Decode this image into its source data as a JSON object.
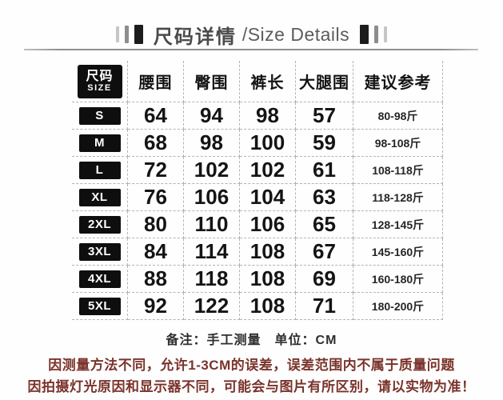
{
  "header": {
    "title_cn": "尺码详情",
    "title_en": "/Size Details"
  },
  "table": {
    "size_badge": {
      "cn": "尺码",
      "en": "SIZE"
    },
    "headers": [
      "腰围",
      "臀围",
      "裤长",
      "大腿围",
      "建议参考"
    ],
    "rows": [
      {
        "size": "S",
        "waist": "64",
        "hip": "94",
        "len": "98",
        "thigh": "57",
        "ref": "80-98斤"
      },
      {
        "size": "M",
        "waist": "68",
        "hip": "98",
        "len": "100",
        "thigh": "59",
        "ref": "98-108斤"
      },
      {
        "size": "L",
        "waist": "72",
        "hip": "102",
        "len": "102",
        "thigh": "61",
        "ref": "108-118斤"
      },
      {
        "size": "XL",
        "waist": "76",
        "hip": "106",
        "len": "104",
        "thigh": "63",
        "ref": "118-128斤"
      },
      {
        "size": "2XL",
        "waist": "80",
        "hip": "110",
        "len": "106",
        "thigh": "65",
        "ref": "128-145斤"
      },
      {
        "size": "3XL",
        "waist": "84",
        "hip": "114",
        "len": "108",
        "thigh": "67",
        "ref": "145-160斤"
      },
      {
        "size": "4XL",
        "waist": "88",
        "hip": "118",
        "len": "108",
        "thigh": "69",
        "ref": "160-180斤"
      },
      {
        "size": "5XL",
        "waist": "92",
        "hip": "122",
        "len": "108",
        "thigh": "71",
        "ref": "180-200斤"
      }
    ]
  },
  "notes": {
    "measure_note": "备注：手工测量　单位：CM",
    "disclaimer1": "因测量方法不同，允许1-3CM的误差，误差范围内不属于质量问题",
    "disclaimer2": "因拍摄灯光原因和显示器不同，可能会与图片有所区别，请以实物为准！"
  },
  "colors": {
    "badge_bg": "#0e0e0e",
    "badge_text": "#ffffff",
    "table_dash_line": "#b3b3b3",
    "title_text": "#4a4a4a",
    "disclaimer_red": "#7a332b",
    "body_text": "#141414"
  },
  "chart_data": {
    "type": "table",
    "title": "尺码详情/Size Details",
    "unit": "CM",
    "note": "备注：手工测量 单位：CM",
    "columns": [
      "尺码/SIZE",
      "腰围",
      "臀围",
      "裤长",
      "大腿围",
      "建议参考"
    ],
    "rows": [
      [
        "S",
        64,
        94,
        98,
        57,
        "80-98斤"
      ],
      [
        "M",
        68,
        98,
        100,
        59,
        "98-108斤"
      ],
      [
        "L",
        72,
        102,
        102,
        61,
        "108-118斤"
      ],
      [
        "XL",
        76,
        106,
        104,
        63,
        "118-128斤"
      ],
      [
        "2XL",
        80,
        110,
        106,
        65,
        "128-145斤"
      ],
      [
        "3XL",
        84,
        114,
        108,
        67,
        "145-160斤"
      ],
      [
        "4XL",
        88,
        118,
        108,
        69,
        "160-180斤"
      ],
      [
        "5XL",
        92,
        122,
        108,
        71,
        "180-200斤"
      ]
    ],
    "disclaimers": [
      "因测量方法不同，允许1-3CM的误差，误差范围内不属于质量问题",
      "因拍摄灯光原因和显示器不同，可能会与图片有所区别，请以实物为准！"
    ]
  }
}
